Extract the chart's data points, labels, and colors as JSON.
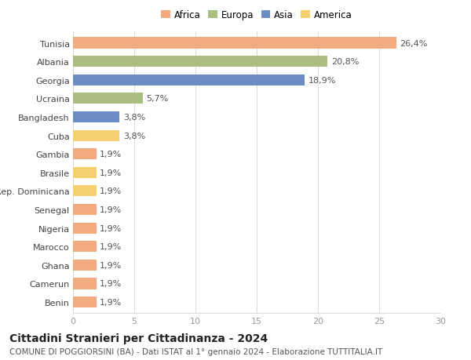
{
  "categories": [
    "Tunisia",
    "Albania",
    "Georgia",
    "Ucraina",
    "Bangladesh",
    "Cuba",
    "Gambia",
    "Brasile",
    "Rep. Dominicana",
    "Senegal",
    "Nigeria",
    "Marocco",
    "Ghana",
    "Camerun",
    "Benin"
  ],
  "values": [
    26.4,
    20.8,
    18.9,
    5.7,
    3.8,
    3.8,
    1.9,
    1.9,
    1.9,
    1.9,
    1.9,
    1.9,
    1.9,
    1.9,
    1.9
  ],
  "labels": [
    "26,4%",
    "20,8%",
    "18,9%",
    "5,7%",
    "3,8%",
    "3,8%",
    "1,9%",
    "1,9%",
    "1,9%",
    "1,9%",
    "1,9%",
    "1,9%",
    "1,9%",
    "1,9%",
    "1,9%"
  ],
  "colors": [
    "#F2AA7E",
    "#ABBE82",
    "#6B8CC4",
    "#ABBE82",
    "#6B8CC4",
    "#F5D070",
    "#F2AA7E",
    "#F5D070",
    "#F5D070",
    "#F2AA7E",
    "#F2AA7E",
    "#F2AA7E",
    "#F2AA7E",
    "#F2AA7E",
    "#F2AA7E"
  ],
  "legend_labels": [
    "Africa",
    "Europa",
    "Asia",
    "America"
  ],
  "legend_colors": [
    "#F2AA7E",
    "#ABBE82",
    "#6B8CC4",
    "#F5D070"
  ],
  "xlim": [
    0,
    30
  ],
  "xticks": [
    0,
    5,
    10,
    15,
    20,
    25,
    30
  ],
  "title": "Cittadini Stranieri per Cittadinanza - 2024",
  "subtitle": "COMUNE DI POGGIORSINI (BA) - Dati ISTAT al 1° gennaio 2024 - Elaborazione TUTTITALIA.IT",
  "bg_color": "#ffffff",
  "grid_color": "#dddddd",
  "title_fontsize": 10,
  "subtitle_fontsize": 7.5,
  "label_fontsize": 8,
  "tick_fontsize": 8,
  "bar_height": 0.6
}
